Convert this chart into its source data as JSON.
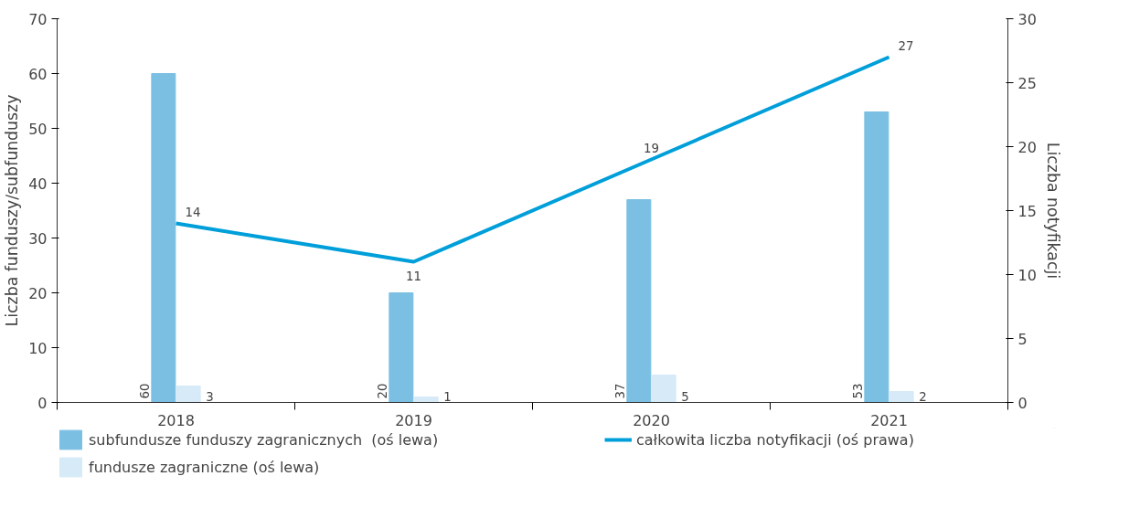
{
  "chart_data": {
    "type": "bar",
    "categories": [
      "2018",
      "2019",
      "2020",
      "2021"
    ],
    "series": [
      {
        "name": "subfundusze funduszy zagranicznych  (oś lewa)",
        "color": "#7bbfe3",
        "values": [
          60,
          20,
          37,
          53
        ]
      },
      {
        "name": "fundusze zagraniczne (oś lewa)",
        "color": "#d6eaf8",
        "values": [
          3,
          1,
          5,
          2
        ]
      },
      {
        "name": "całkowita liczba notyfikacji (oś prawa)",
        "type": "line",
        "axis": "y2",
        "color": "#009fda",
        "values": [
          14,
          11,
          19,
          27
        ]
      }
    ],
    "ylabel": "Liczba funduszy/subfunduszy",
    "y2label": "Liczba notyfikacji",
    "ylim": [
      0,
      70
    ],
    "yticks": [
      0,
      10,
      20,
      30,
      40,
      50,
      60,
      70
    ],
    "y2lim": [
      0,
      30
    ],
    "y2ticks": [
      0,
      5,
      10,
      15,
      20,
      25,
      30
    ],
    "data_labels": true,
    "legend": "bottom"
  }
}
